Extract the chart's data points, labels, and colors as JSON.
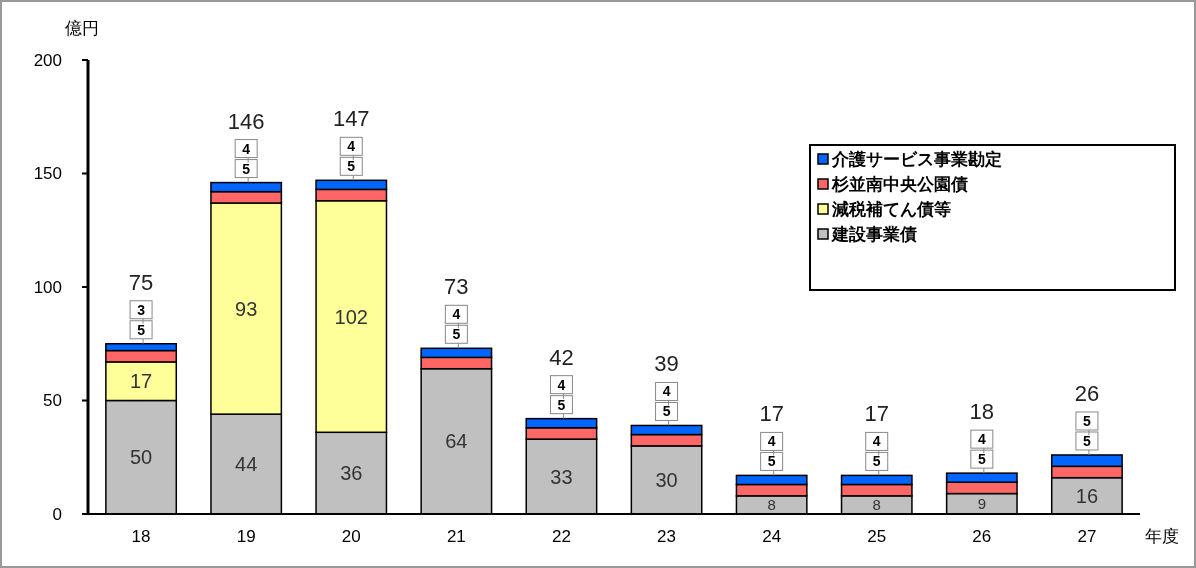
{
  "chart_data": {
    "type": "bar",
    "stacked": true,
    "ylabel": "億円",
    "xlabel": "年度",
    "categories": [
      "18",
      "19",
      "20",
      "21",
      "22",
      "23",
      "24",
      "25",
      "26",
      "27"
    ],
    "series": [
      {
        "name": "建設事業債",
        "color": "#c0c0c0",
        "values": [
          50,
          44,
          36,
          64,
          33,
          30,
          8,
          8,
          9,
          16
        ]
      },
      {
        "name": "減税補てん債等",
        "color": "#ffff99",
        "values": [
          17,
          93,
          102,
          null,
          null,
          null,
          null,
          null,
          null,
          null
        ]
      },
      {
        "name": "杉並南中央公園債",
        "color": "#ff6666",
        "values": [
          5,
          5,
          5,
          5,
          5,
          5,
          5,
          5,
          5,
          5
        ]
      },
      {
        "name": "介護サービス事業勘定",
        "color": "#0066ff",
        "values": [
          3,
          4,
          4,
          4,
          4,
          4,
          4,
          4,
          4,
          5
        ]
      }
    ],
    "totals": [
      "75",
      "146",
      "147",
      "73",
      "42",
      "39",
      "17",
      "17",
      "18",
      "26"
    ],
    "data_labels": true,
    "ylim": [
      0,
      200
    ],
    "yticks": [
      0,
      50,
      100,
      150,
      200
    ],
    "legend": "top right"
  }
}
